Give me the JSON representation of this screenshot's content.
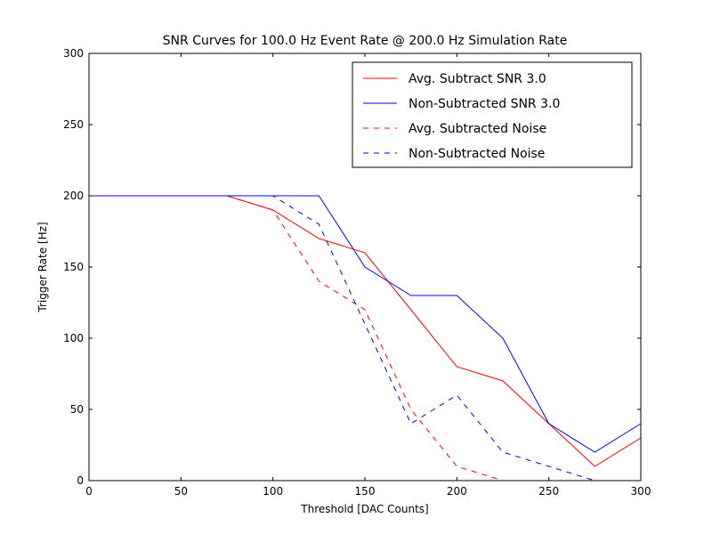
{
  "chart_data": {
    "type": "line",
    "title": "SNR Curves for 100.0 Hz Event Rate @ 200.0 Hz Simulation Rate",
    "xlabel": "Threshold [DAC Counts]",
    "ylabel": "Trigger Rate [Hz]",
    "xlim": [
      0,
      300
    ],
    "ylim": [
      0,
      300
    ],
    "xticks": [
      0,
      50,
      100,
      150,
      200,
      250,
      300
    ],
    "yticks": [
      0,
      50,
      100,
      150,
      200,
      250,
      300
    ],
    "grid": false,
    "legend_position": "top-right",
    "series": [
      {
        "name": "Avg. Subtract SNR 3.0",
        "color": "#ff0000",
        "style": "solid",
        "x": [
          0,
          25,
          50,
          75,
          100,
          125,
          150,
          175,
          200,
          225,
          250,
          275,
          300
        ],
        "y": [
          200,
          200,
          200,
          200,
          190,
          170,
          160,
          120,
          80,
          70,
          40,
          10,
          30
        ]
      },
      {
        "name": "Non-Subtracted SNR 3.0",
        "color": "#0000ff",
        "style": "solid",
        "x": [
          0,
          25,
          50,
          75,
          100,
          125,
          150,
          175,
          200,
          225,
          250,
          275,
          300
        ],
        "y": [
          200,
          200,
          200,
          200,
          200,
          200,
          150,
          130,
          130,
          100,
          40,
          20,
          40
        ]
      },
      {
        "name": "Avg. Subtracted Noise",
        "color": "#ff0000",
        "style": "dashed",
        "x": [
          0,
          25,
          50,
          75,
          100,
          125,
          150,
          175,
          200,
          225,
          250,
          275,
          300
        ],
        "y": [
          200,
          200,
          200,
          200,
          190,
          140,
          120,
          50,
          10,
          0,
          0,
          0,
          0
        ]
      },
      {
        "name": "Non-Subtracted Noise",
        "color": "#0000ff",
        "style": "dashed",
        "x": [
          0,
          25,
          50,
          75,
          100,
          125,
          150,
          175,
          200,
          225,
          250,
          275,
          300
        ],
        "y": [
          200,
          200,
          200,
          200,
          200,
          180,
          110,
          40,
          60,
          20,
          10,
          0,
          0
        ]
      }
    ]
  }
}
